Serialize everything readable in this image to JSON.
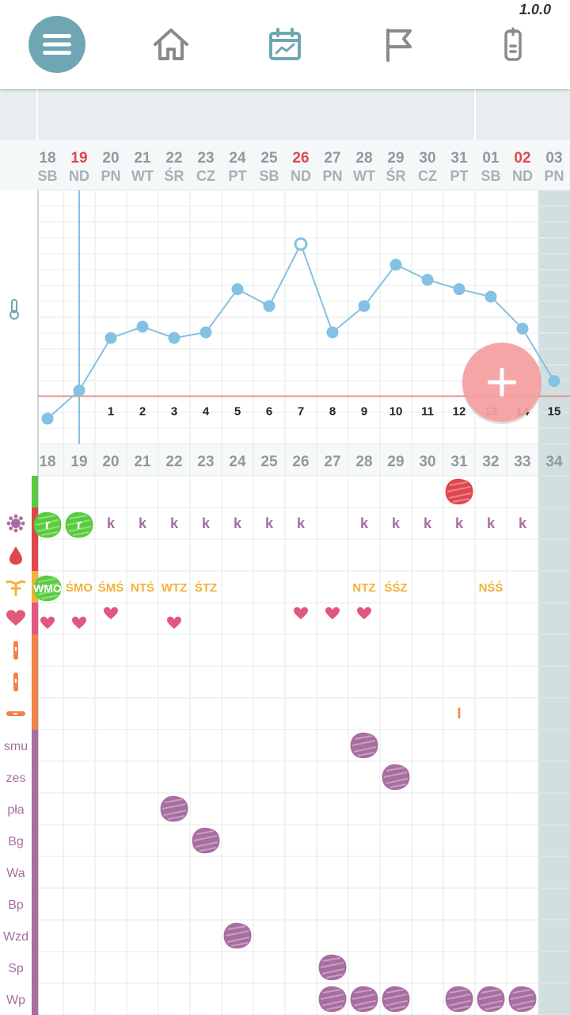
{
  "app": {
    "version": "1.0.0"
  },
  "nav": {
    "items": [
      {
        "name": "menu-icon",
        "color": "#ffffff"
      },
      {
        "name": "home-icon",
        "color": "#8a8a8a"
      },
      {
        "name": "calendar-chart-icon",
        "color": "#6ea7b3"
      },
      {
        "name": "flag-icon",
        "color": "#8a8a8a"
      },
      {
        "name": "thermometer-device-icon",
        "color": "#8a8a8a"
      }
    ]
  },
  "colors": {
    "accent": "#6ea7b3",
    "point": "#84c1e2",
    "sunday": "#e0474c",
    "cover": "#ef8a8a",
    "fab": "#f7a0a2",
    "purple": "#a86ea0",
    "yellow": "#f2b13a",
    "green": "#59cb3f",
    "pink": "#e2577d",
    "orange": "#f0834a"
  },
  "dates": [
    {
      "day": "18",
      "dow": "SB",
      "sunday": false
    },
    {
      "day": "19",
      "dow": "ND",
      "sunday": true
    },
    {
      "day": "20",
      "dow": "PN",
      "sunday": false
    },
    {
      "day": "21",
      "dow": "WT",
      "sunday": false
    },
    {
      "day": "22",
      "dow": "ŚR",
      "sunday": false
    },
    {
      "day": "23",
      "dow": "CZ",
      "sunday": false
    },
    {
      "day": "24",
      "dow": "PT",
      "sunday": false
    },
    {
      "day": "25",
      "dow": "SB",
      "sunday": false
    },
    {
      "day": "26",
      "dow": "ND",
      "sunday": true
    },
    {
      "day": "27",
      "dow": "PN",
      "sunday": false
    },
    {
      "day": "28",
      "dow": "WT",
      "sunday": false
    },
    {
      "day": "29",
      "dow": "ŚR",
      "sunday": false
    },
    {
      "day": "30",
      "dow": "CZ",
      "sunday": false
    },
    {
      "day": "31",
      "dow": "PT",
      "sunday": false
    },
    {
      "day": "01",
      "dow": "SB",
      "sunday": false
    },
    {
      "day": "02",
      "dow": "ND",
      "sunday": true
    },
    {
      "day": "03",
      "dow": "PN",
      "sunday": false
    }
  ],
  "cycle_days": [
    "18",
    "19",
    "20",
    "21",
    "22",
    "23",
    "24",
    "25",
    "26",
    "27",
    "28",
    "29",
    "30",
    "31",
    "32",
    "33",
    "34"
  ],
  "chart_data": {
    "type": "line",
    "title": "",
    "xlabel": "",
    "ylabel": "",
    "series": [
      {
        "values": [
          0.11,
          0.26,
          0.54,
          0.6,
          0.54,
          0.57,
          0.8,
          0.71,
          1.04,
          0.57,
          0.71,
          0.93,
          0.85,
          0.8,
          0.76,
          0.59,
          0.31
        ]
      }
    ],
    "high_points": [
      "",
      "",
      "1",
      "2",
      "3",
      "4",
      "5",
      "6",
      "7",
      "8",
      "9",
      "10",
      "11",
      "12",
      "13",
      "14",
      "15"
    ],
    "open_point_index": 8,
    "ylim": [
      0,
      1.2
    ],
    "grid": true
  },
  "rows": [
    {
      "label": "",
      "icon": "",
      "color": "#59cb3f",
      "cells": {
        "13": {
          "type": "blob",
          "color": "#e0474c"
        }
      }
    },
    {
      "label": "",
      "icon": "virus-icon",
      "color": "#e0474c",
      "cells": {
        "0": {
          "type": "blobtext",
          "color": "#59cb3f",
          "text": "r"
        },
        "1": {
          "type": "blobtext",
          "color": "#59cb3f",
          "text": "r"
        },
        "2": {
          "type": "text",
          "text": "k"
        },
        "3": {
          "type": "text",
          "text": "k"
        },
        "4": {
          "type": "text",
          "text": "k"
        },
        "5": {
          "type": "text",
          "text": "k"
        },
        "6": {
          "type": "text",
          "text": "k"
        },
        "7": {
          "type": "text",
          "text": "k"
        },
        "8": {
          "type": "text",
          "text": "k"
        },
        "10": {
          "type": "text",
          "text": "k"
        },
        "11": {
          "type": "text",
          "text": "k"
        },
        "12": {
          "type": "text",
          "text": "k"
        },
        "13": {
          "type": "text",
          "text": "k"
        },
        "14": {
          "type": "text",
          "text": "k"
        },
        "15": {
          "type": "text",
          "text": "k"
        }
      }
    },
    {
      "label": "",
      "icon": "drop-icon",
      "color": "#e0474c",
      "cells": {}
    },
    {
      "label": "",
      "icon": "uterus-icon",
      "color": "#f2b13a",
      "cells": {
        "0": {
          "type": "blobtext",
          "color": "#59cb3f",
          "text": "WMO"
        },
        "1": {
          "type": "text",
          "text": "ŚMO"
        },
        "2": {
          "type": "text",
          "text": "ŚMŚ"
        },
        "3": {
          "type": "text",
          "text": "NTŚ"
        },
        "4": {
          "type": "text",
          "text": "WTZ"
        },
        "5": {
          "type": "text",
          "text": "ŚTZ"
        },
        "10": {
          "type": "text",
          "text": "NTZ"
        },
        "11": {
          "type": "text",
          "text": "ŚŚZ"
        },
        "14": {
          "type": "text",
          "text": "NŚŚ"
        }
      }
    },
    {
      "label": "",
      "icon": "heart-icon",
      "color": "#e2577d",
      "cells": {
        "0": {
          "type": "heart",
          "pos": "low"
        },
        "1": {
          "type": "heart",
          "pos": "low"
        },
        "2": {
          "type": "heart",
          "pos": "high"
        },
        "4": {
          "type": "heart",
          "pos": "low"
        },
        "8": {
          "type": "heart",
          "pos": "high"
        },
        "9": {
          "type": "heart",
          "pos": "high"
        },
        "10": {
          "type": "heart",
          "pos": "high"
        }
      }
    },
    {
      "label": "",
      "icon": "test-stick-icon",
      "color": "#f0834a",
      "cells": {}
    },
    {
      "label": "",
      "icon": "test-stick-icon",
      "color": "#f0834a",
      "cells": {}
    },
    {
      "label": "",
      "icon": "test-horizontal-icon",
      "color": "#f0834a",
      "cells": {
        "13": {
          "type": "text",
          "text": "l"
        }
      }
    },
    {
      "label": "smu",
      "icon": "",
      "color": "#a86ea0",
      "cells": {
        "10": {
          "type": "blob",
          "color": "#a86ea0"
        }
      }
    },
    {
      "label": "zes",
      "icon": "",
      "color": "#a86ea0",
      "cells": {
        "11": {
          "type": "blob",
          "color": "#a86ea0"
        }
      }
    },
    {
      "label": "pła",
      "icon": "",
      "color": "#a86ea0",
      "cells": {
        "4": {
          "type": "blob",
          "color": "#a86ea0"
        }
      }
    },
    {
      "label": "Bg",
      "icon": "",
      "color": "#a86ea0",
      "cells": {
        "5": {
          "type": "blob",
          "color": "#a86ea0"
        }
      }
    },
    {
      "label": "Wa",
      "icon": "",
      "color": "#a86ea0",
      "cells": {}
    },
    {
      "label": "Bp",
      "icon": "",
      "color": "#a86ea0",
      "cells": {}
    },
    {
      "label": "Wzd",
      "icon": "",
      "color": "#a86ea0",
      "cells": {
        "6": {
          "type": "blob",
          "color": "#a86ea0"
        }
      }
    },
    {
      "label": "Sp",
      "icon": "",
      "color": "#a86ea0",
      "cells": {
        "9": {
          "type": "blob",
          "color": "#a86ea0"
        }
      }
    },
    {
      "label": "Wp",
      "icon": "",
      "color": "#a86ea0",
      "cells": {
        "9": {
          "type": "blob",
          "color": "#a86ea0"
        },
        "10": {
          "type": "blob",
          "color": "#a86ea0"
        },
        "11": {
          "type": "blob",
          "color": "#a86ea0"
        },
        "13": {
          "type": "blob",
          "color": "#a86ea0"
        },
        "14": {
          "type": "blob",
          "color": "#a86ea0"
        },
        "15": {
          "type": "blob",
          "color": "#a86ea0"
        }
      }
    }
  ],
  "fab": {
    "icon": "plus-icon"
  }
}
